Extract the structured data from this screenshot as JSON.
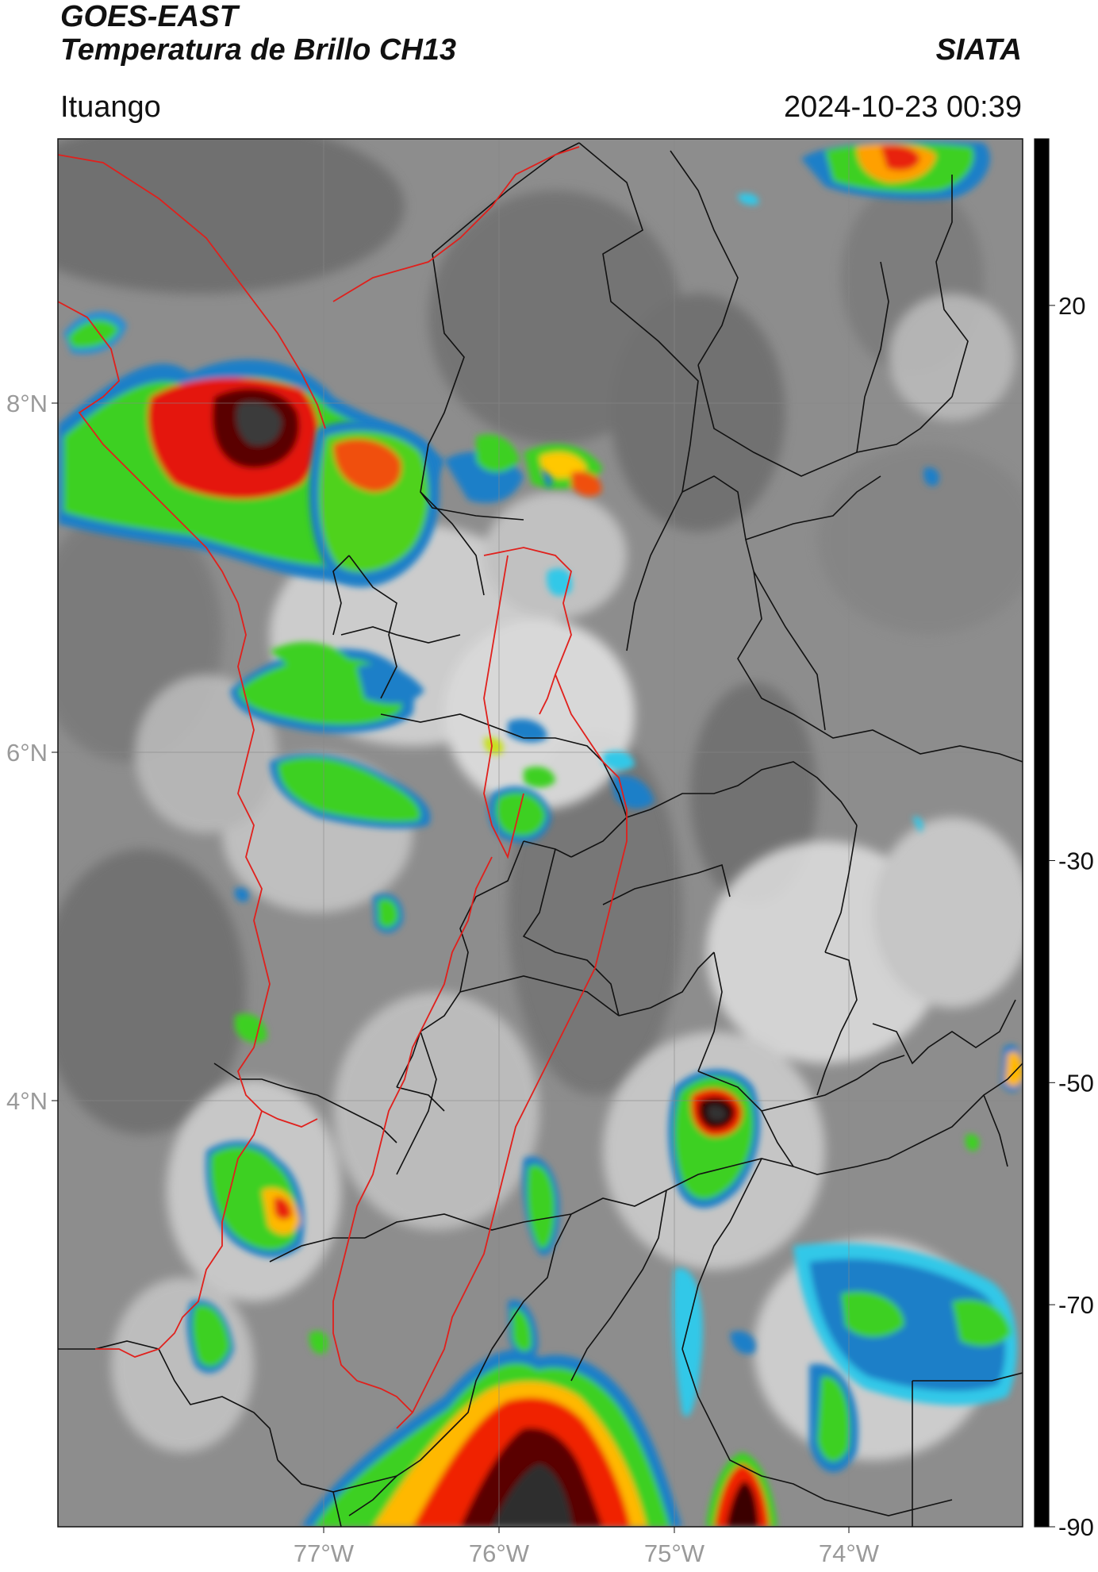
{
  "header": {
    "satellite": "GOES-EAST",
    "product": "Temperatura de Brillo CH13",
    "brand": "SIATA",
    "location": "Ituango",
    "timestamp": "2024-10-23 00:39"
  },
  "map": {
    "longitude_labels": [
      "77°W",
      "76°W",
      "75°W",
      "74°W"
    ],
    "latitude_labels": [
      "8°N",
      "6°N",
      "4°N"
    ],
    "colors": {
      "country_border": "#e0201c",
      "admin_border": "#111111",
      "grid": "#888888"
    }
  },
  "colorbar": {
    "ticks": [
      "20",
      "-30",
      "-50",
      "-70",
      "-90"
    ],
    "tick_values": [
      20,
      -30,
      -50,
      -70,
      -90
    ],
    "range": [
      -90,
      35
    ],
    "stops": [
      {
        "v": 35,
        "c": "#000000"
      },
      {
        "v": 20,
        "c": "#606060"
      },
      {
        "v": -12,
        "c": "#f4f4f4"
      },
      {
        "v": -16,
        "c": "#ffffff"
      },
      {
        "v": -17,
        "c": "#30c8e8"
      },
      {
        "v": -25,
        "c": "#1090d0"
      },
      {
        "v": -30,
        "c": "#003080"
      },
      {
        "v": -34,
        "c": "#009050"
      },
      {
        "v": -42,
        "c": "#30d010"
      },
      {
        "v": -48,
        "c": "#d8e810"
      },
      {
        "v": -52,
        "c": "#ffb800"
      },
      {
        "v": -58,
        "c": "#f02000"
      },
      {
        "v": -64,
        "c": "#b00000"
      },
      {
        "v": -68,
        "c": "#300000"
      },
      {
        "v": -70,
        "c": "#000000"
      },
      {
        "v": -76,
        "c": "#b0b0b0"
      },
      {
        "v": -80,
        "c": "#e8d8e0"
      },
      {
        "v": -83,
        "c": "#d040c0"
      },
      {
        "v": -88,
        "c": "#7a1a8a"
      },
      {
        "v": -89,
        "c": "#ffffff"
      },
      {
        "v": -90,
        "c": "#ffffff"
      }
    ]
  }
}
